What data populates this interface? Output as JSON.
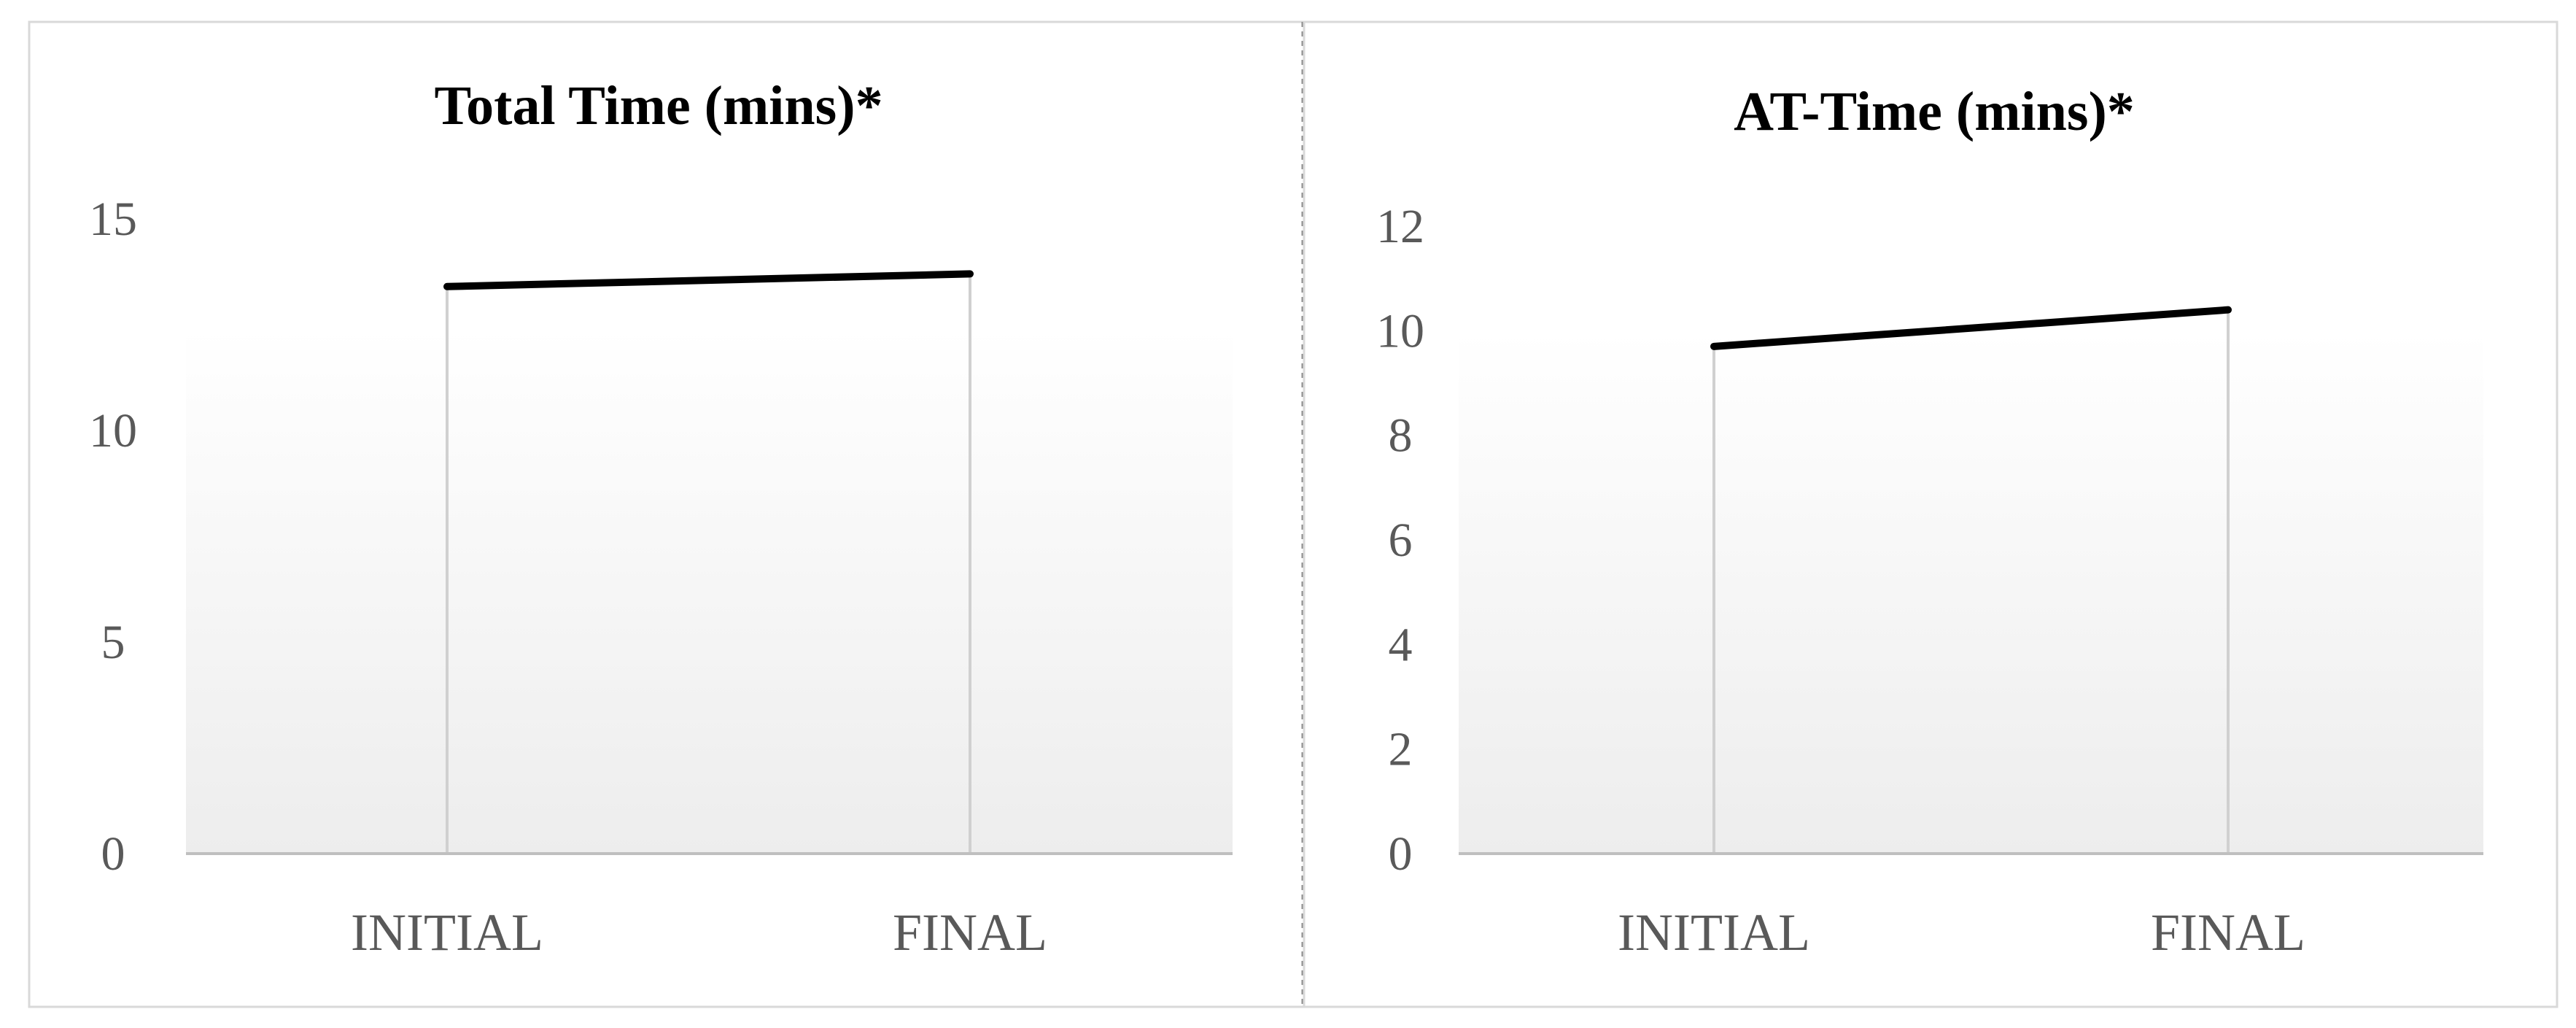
{
  "chart_data": [
    {
      "type": "line",
      "title": "Total Time (mins)*",
      "categories": [
        "INITIAL",
        "FINAL"
      ],
      "values": [
        13.4,
        13.7
      ],
      "ylim": [
        0,
        15
      ],
      "yticks": [
        0,
        5,
        10,
        15
      ],
      "drop_lines": true,
      "grid": false,
      "line_color": "#000000"
    },
    {
      "type": "line",
      "title": "AT-Time (mins)*",
      "categories": [
        "INITIAL",
        "FINAL"
      ],
      "values": [
        9.7,
        10.4
      ],
      "ylim": [
        0,
        12
      ],
      "yticks": [
        0,
        2,
        4,
        6,
        8,
        10,
        12
      ],
      "drop_lines": true,
      "grid": false,
      "line_color": "#000000"
    }
  ]
}
